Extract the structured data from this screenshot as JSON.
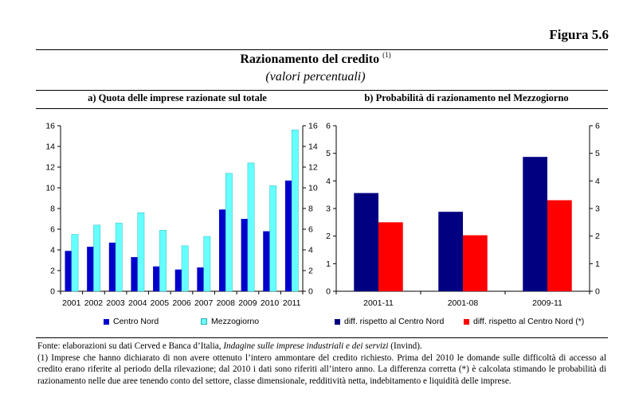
{
  "figure_label": "Figura 5.6",
  "title": "Razionamento del credito",
  "title_note": "(1)",
  "subtitle": "(valori percentuali)",
  "chart_data": [
    {
      "type": "bar",
      "title": "a) Quota delle imprese razionate sul totale",
      "categories": [
        "2001",
        "2002",
        "2003",
        "2004",
        "2005",
        "2006",
        "2007",
        "2008",
        "2009",
        "2010",
        "2011"
      ],
      "ylim": [
        0,
        16
      ],
      "yticks": [
        0,
        2,
        4,
        6,
        8,
        10,
        12,
        14,
        16
      ],
      "ytick_labels": [
        "0",
        "2",
        "4",
        "6",
        "8",
        "10",
        "12",
        "14",
        "16"
      ],
      "secondary_axis": true,
      "grid": false,
      "legend": "bottom",
      "series": [
        {
          "name": "Centro Nord",
          "color": "#0000cc",
          "values": [
            3.9,
            4.3,
            4.7,
            3.3,
            2.4,
            2.1,
            2.3,
            7.9,
            7.0,
            5.8,
            10.7
          ]
        },
        {
          "name": "Mezzogiorno",
          "color": "#66ffff",
          "values": [
            5.5,
            6.4,
            6.6,
            7.6,
            5.9,
            4.4,
            5.3,
            11.4,
            12.4,
            10.2,
            15.6
          ]
        }
      ]
    },
    {
      "type": "bar",
      "title": "b) Probabilità di razionamento nel Mezzogiorno",
      "categories": [
        "2001-11",
        "2001-08",
        "2009-11"
      ],
      "ylim": [
        0,
        6
      ],
      "yticks": [
        0,
        1,
        2,
        3,
        4,
        5,
        6
      ],
      "ytick_labels": [
        "0",
        "1",
        "2",
        "3",
        "4",
        "5",
        "6"
      ],
      "secondary_axis": true,
      "grid": false,
      "legend": "bottom",
      "series": [
        {
          "name": "diff. rispetto al Centro Nord",
          "color": "#000080",
          "values": [
            3.56,
            2.88,
            4.87
          ]
        },
        {
          "name": "diff. rispetto al Centro Nord (*)",
          "color": "#ff0000",
          "values": [
            2.5,
            2.03,
            3.3
          ]
        }
      ]
    }
  ],
  "notes": {
    "source_prefix": "Fonte: elaborazioni su dati Cerved e Banca d’Italia, ",
    "source_italic": "Indagine sulle imprese industriali e dei servizi",
    "source_suffix": " (Invind).",
    "note1": "(1) Imprese che hanno dichiarato di non avere ottenuto l’intero ammontare del credito richiesto. Prima del 2010 le domande sulle difficoltà di accesso al credito erano riferite al periodo della rilevazione; dal 2010 i dati sono riferiti all’intero anno. La differenza corretta (*) è calcolata stimando le probabilità di razionamento nelle due aree tenendo conto del settore, classe dimensionale, redditività netta, indebitamento e liquidità delle imprese."
  }
}
